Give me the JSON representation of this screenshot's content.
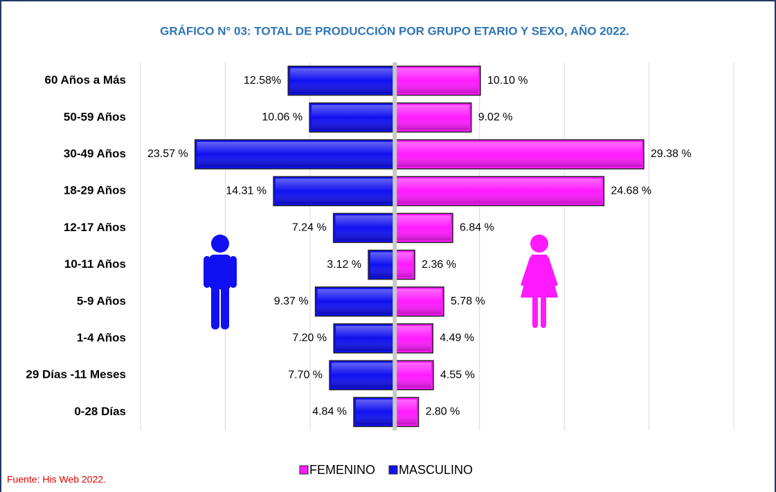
{
  "chart_data": {
    "type": "pyramid",
    "title": "GRÁFICO N° 03: TOTAL DE PRODUCCIÓN POR GRUPO ETARIO Y SEXO, AÑO 2022.",
    "source": "Fuente: His Web 2022.",
    "categories": [
      "60 Años a Más",
      "50-59 Años",
      "30-49 Años",
      "18-29 Años",
      "12-17 Años",
      "10-11 Años",
      "5-9 Años",
      "1-4 Años",
      "29 Días -11 Meses",
      "0-28 Días"
    ],
    "series": [
      {
        "name": "FEMENINO",
        "color": "#ff1aff",
        "side": "right",
        "values": [
          10.1,
          9.02,
          29.38,
          24.68,
          6.84,
          2.36,
          5.78,
          4.49,
          4.55,
          2.8
        ],
        "value_labels": [
          "10.10 %",
          "9.02 %",
          "29.38 %",
          "24.68 %",
          "6.84 %",
          "2.36 %",
          "5.78 %",
          "4.49 %",
          "4.55 %",
          "2.80 %"
        ]
      },
      {
        "name": "MASCULINO",
        "color": "#1010f0",
        "side": "left",
        "values": [
          12.58,
          10.06,
          23.57,
          14.31,
          7.24,
          3.12,
          9.37,
          7.2,
          7.7,
          4.84
        ],
        "value_labels": [
          "12.58%",
          "10.06 %",
          "23.57 %",
          "14.31 %",
          "7.24 %",
          "3.12 %",
          "9.37 %",
          "7.20 %",
          "7.70 %",
          "4.84 %"
        ]
      }
    ],
    "xlim": [
      -30,
      40
    ],
    "xticks": [
      -30,
      -20,
      -10,
      0,
      10,
      20,
      30,
      40
    ],
    "grid": true
  }
}
